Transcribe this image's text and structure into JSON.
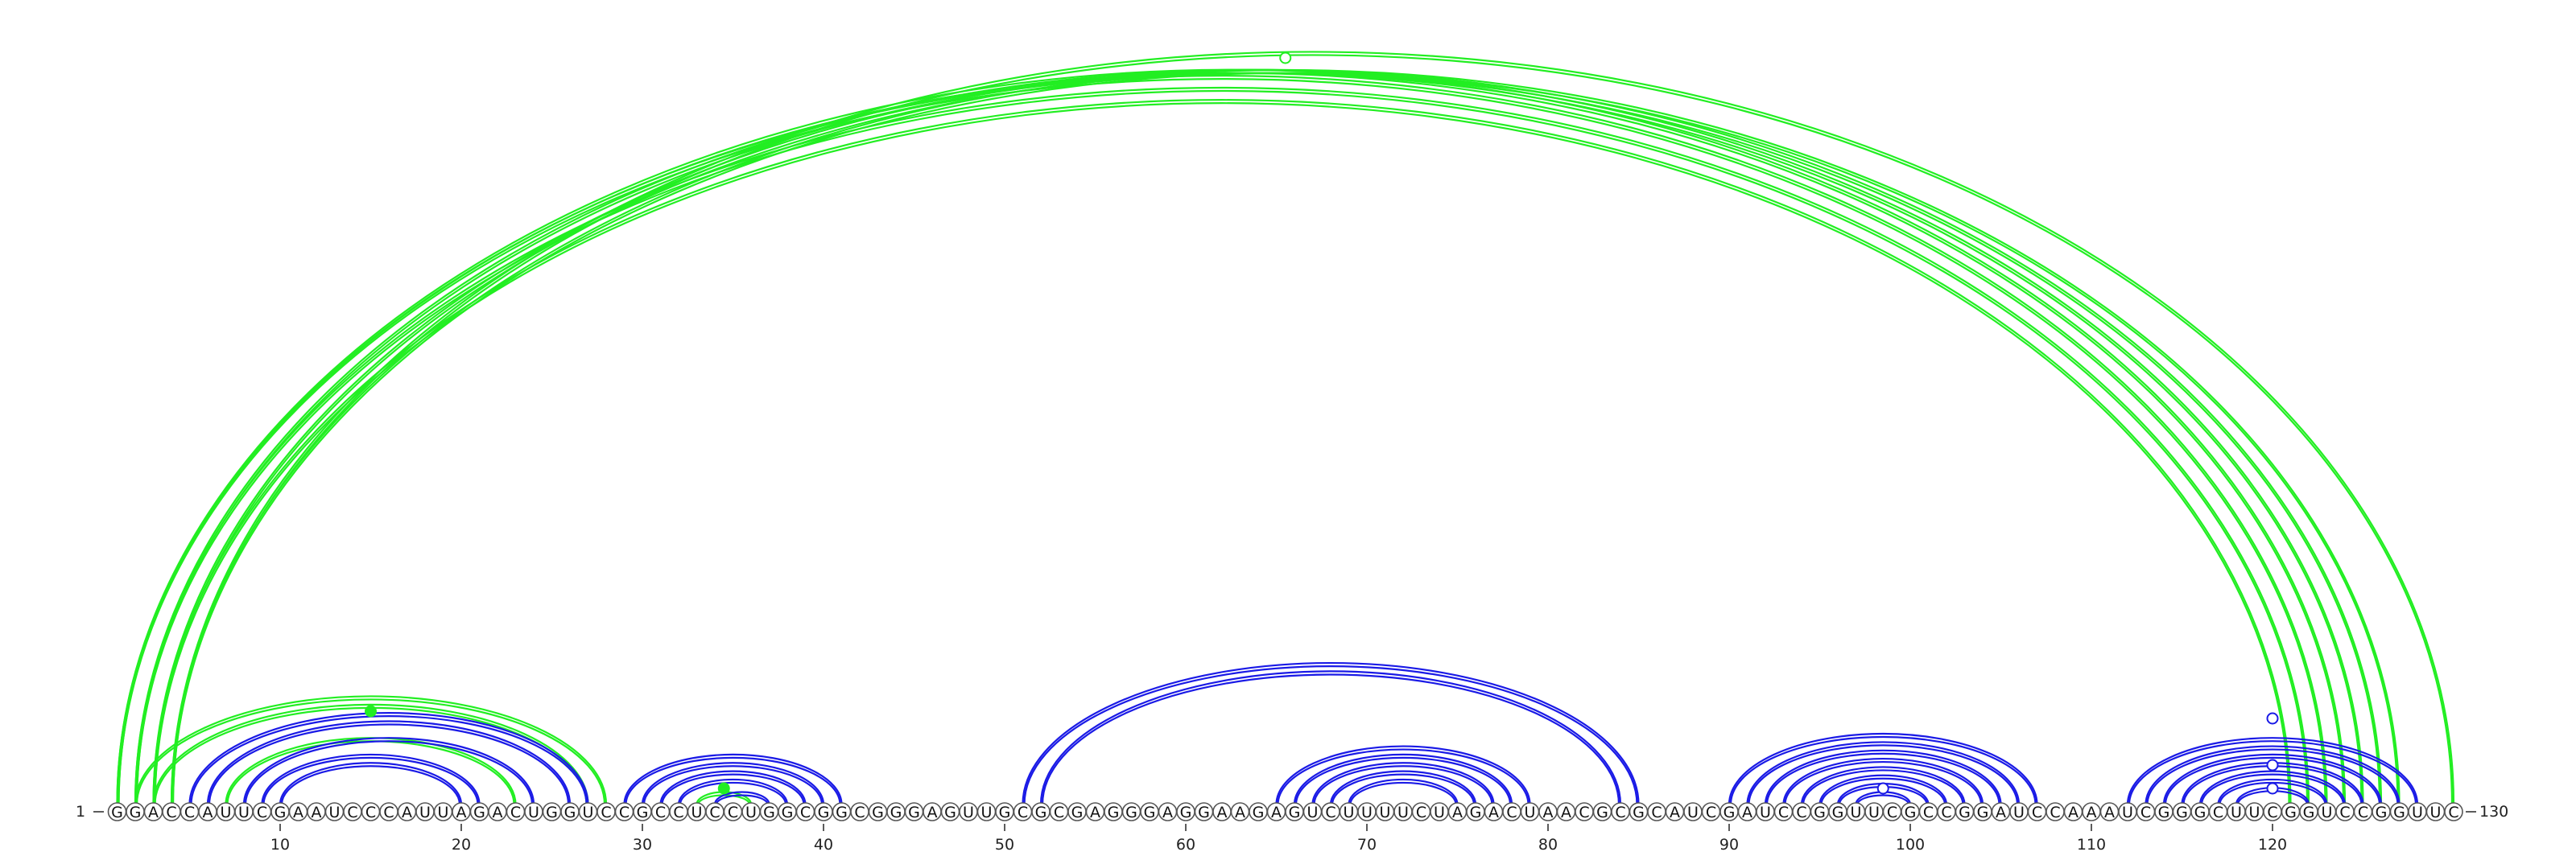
{
  "sequence": "GGACCAUUCGAAUCCCAUUAGACUGGUCCGCCUCCUGGCGGCGGGAGUUGCGCGAGGGAGGAAGAGUCUUUUCUAGACUAACGCGCAUCGAUCCGGUUCGCCGGAUCCAAAUCGGGCUUCGGUCCGGUUC",
  "start_label": "1",
  "end_label": "130",
  "ticks": [
    10,
    20,
    30,
    40,
    50,
    60,
    70,
    80,
    90,
    100,
    110,
    120
  ],
  "colors": {
    "upper_arcs": "#22ee22",
    "lower_arcs": "#1a1ae6",
    "circle_stroke": "#555555"
  },
  "arc_groups": [
    {
      "color": "green",
      "pairs": [
        [
          1,
          123
        ],
        [
          2,
          122
        ],
        [
          3,
          121
        ]
      ]
    },
    {
      "color": "green",
      "pairs": [
        [
          1,
          124
        ],
        [
          2,
          125
        ],
        [
          3,
          126
        ],
        [
          4,
          127
        ]
      ]
    },
    {
      "color": "green",
      "pairs": [
        [
          4,
          130
        ]
      ]
    },
    {
      "color": "green",
      "pairs": [
        [
          2,
          28
        ],
        [
          3,
          27
        ]
      ]
    },
    {
      "color": "green",
      "pairs": [
        [
          7,
          23
        ]
      ]
    },
    {
      "color": "green",
      "pairs": [
        [
          33,
          36
        ]
      ]
    },
    {
      "color": "blue",
      "pairs": [
        [
          5,
          27
        ],
        [
          6,
          26
        ],
        [
          8,
          24
        ],
        [
          9,
          21
        ],
        [
          10,
          20
        ]
      ]
    },
    {
      "color": "blue",
      "pairs": [
        [
          29,
          41
        ],
        [
          30,
          40
        ],
        [
          31,
          39
        ],
        [
          32,
          38
        ],
        [
          34,
          37
        ]
      ]
    },
    {
      "color": "blue",
      "pairs": [
        [
          51,
          85
        ],
        [
          52,
          84
        ]
      ]
    },
    {
      "color": "blue",
      "pairs": [
        [
          65,
          79
        ],
        [
          66,
          78
        ],
        [
          67,
          77
        ],
        [
          68,
          76
        ],
        [
          69,
          75
        ]
      ]
    },
    {
      "color": "blue",
      "pairs": [
        [
          90,
          107
        ],
        [
          91,
          106
        ],
        [
          92,
          105
        ],
        [
          93,
          104
        ],
        [
          94,
          103
        ],
        [
          95,
          102
        ],
        [
          96,
          101
        ],
        [
          97,
          100
        ]
      ]
    },
    {
      "color": "blue",
      "pairs": [
        [
          112,
          128
        ],
        [
          113,
          127
        ],
        [
          114,
          126
        ],
        [
          115,
          125
        ],
        [
          116,
          124
        ],
        [
          117,
          123
        ],
        [
          118,
          122
        ]
      ]
    }
  ],
  "markers": [
    {
      "position": 65.5,
      "color": "green",
      "filled": false,
      "level": "outer"
    },
    {
      "position": 15,
      "color": "green",
      "filled": true,
      "level": "mid"
    },
    {
      "position": 34.5,
      "color": "green",
      "filled": true,
      "level": "low"
    },
    {
      "position": 98.5,
      "color": "blue",
      "filled": false,
      "level": "low"
    },
    {
      "position": 120,
      "color": "blue",
      "filled": false,
      "level": "low"
    },
    {
      "position": 120,
      "color": "blue",
      "filled": false,
      "level": "mid"
    },
    {
      "position": 120,
      "color": "blue",
      "filled": false,
      "level": "high"
    }
  ]
}
